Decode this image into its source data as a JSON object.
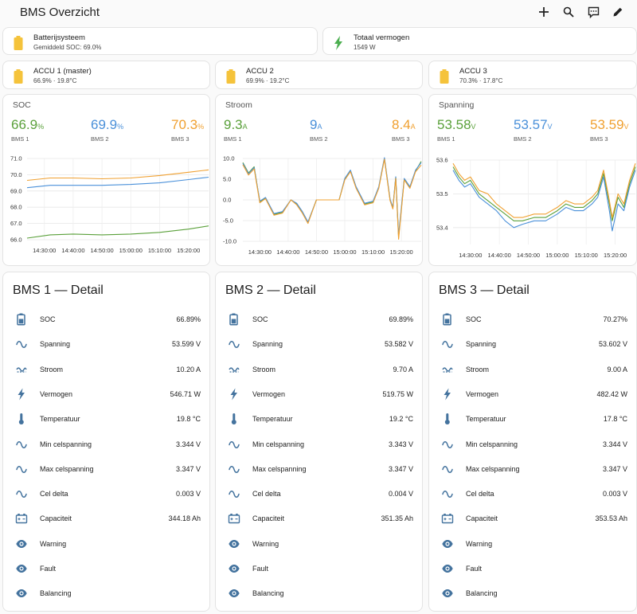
{
  "app_title": "BMS Overzicht",
  "colors": {
    "green": "#5aa03a",
    "blue": "#4a90d9",
    "orange": "#f0a030",
    "battery": "#f5c33b",
    "icon": "#44739e",
    "bolt": "#4caf50"
  },
  "toolbar": {
    "icons": [
      "plus-icon",
      "search-icon",
      "assist-icon",
      "pencil-icon"
    ]
  },
  "summary": [
    {
      "name": "Batterijsysteem",
      "state": "Gemiddeld SOC: 69.0%",
      "icon": "battery-icon"
    },
    {
      "name": "Totaal vermogen",
      "state": "1549 W",
      "icon": "flash-icon"
    }
  ],
  "accus": [
    {
      "name": "ACCU 1 (master)",
      "state": "66.9% · 19.8°C"
    },
    {
      "name": "ACCU 2",
      "state": "69.9% · 19.2°C"
    },
    {
      "name": "ACCU 3",
      "state": "70.3% · 17.8°C"
    }
  ],
  "graphs": [
    {
      "title": "SOC",
      "items": [
        {
          "value": "66.9",
          "unit": "%",
          "label": "BMS 1"
        },
        {
          "value": "69.9",
          "unit": "%",
          "label": "BMS 2"
        },
        {
          "value": "70.3",
          "unit": "%",
          "label": "BMS 3"
        }
      ]
    },
    {
      "title": "Stroom",
      "items": [
        {
          "value": "9.3",
          "unit": "A",
          "label": "BMS 1"
        },
        {
          "value": "9",
          "unit": "A",
          "label": "BMS 2"
        },
        {
          "value": "8.4",
          "unit": "A",
          "label": "BMS 3"
        }
      ]
    },
    {
      "title": "Spanning",
      "items": [
        {
          "value": "53.58",
          "unit": "V",
          "label": "BMS 1"
        },
        {
          "value": "53.57",
          "unit": "V",
          "label": "BMS 2"
        },
        {
          "value": "53.59",
          "unit": "V",
          "label": "BMS 3"
        }
      ]
    }
  ],
  "chart_data": [
    {
      "type": "line",
      "title": "SOC",
      "xlabel": "",
      "ylabel": "",
      "x_ticks": [
        "14:30:00",
        "14:40:00",
        "14:50:00",
        "15:00:00",
        "15:10:00",
        "15:20:00"
      ],
      "x_range": [
        "14:24",
        "15:27"
      ],
      "y_ticks": [
        "66.0",
        "67.0",
        "68.0",
        "69.0",
        "70.0",
        "71.0"
      ],
      "ylim": [
        66,
        71
      ],
      "grid": true,
      "series": [
        {
          "name": "BMS 1",
          "color": "#5aa03a",
          "x": [
            "14:24",
            "14:32",
            "14:40",
            "14:50",
            "15:00",
            "15:10",
            "15:20",
            "15:27"
          ],
          "y": [
            66.1,
            66.3,
            66.35,
            66.3,
            66.35,
            66.45,
            66.65,
            66.85
          ]
        },
        {
          "name": "BMS 2",
          "color": "#4a90d9",
          "x": [
            "14:24",
            "14:32",
            "14:40",
            "14:50",
            "15:00",
            "15:10",
            "15:20",
            "15:27"
          ],
          "y": [
            69.2,
            69.35,
            69.35,
            69.35,
            69.4,
            69.5,
            69.7,
            69.85
          ]
        },
        {
          "name": "BMS 3",
          "color": "#f0a030",
          "x": [
            "14:24",
            "14:32",
            "14:40",
            "14:50",
            "15:00",
            "15:10",
            "15:20",
            "15:27"
          ],
          "y": [
            69.65,
            69.8,
            69.8,
            69.75,
            69.8,
            69.95,
            70.15,
            70.3
          ]
        }
      ]
    },
    {
      "type": "line",
      "title": "Stroom",
      "xlabel": "",
      "ylabel": "",
      "x_ticks": [
        "14:30:00",
        "14:40:00",
        "14:50:00",
        "15:00:00",
        "15:10:00",
        "15:20:00"
      ],
      "x_range": [
        "14:24",
        "15:27"
      ],
      "y_ticks": [
        "-10.0",
        "-5.0",
        "0.0",
        "5.0",
        "10.0"
      ],
      "ylim": [
        -10,
        10
      ],
      "grid": true,
      "series": [
        {
          "name": "BMS 1",
          "color": "#5aa03a",
          "x": [
            "14:24",
            "14:26",
            "14:28",
            "14:30",
            "14:32",
            "14:35",
            "14:38",
            "14:41",
            "14:43",
            "14:45",
            "14:47",
            "14:50",
            "14:53",
            "14:56",
            "14:58",
            "15:00",
            "15:02",
            "15:04",
            "15:07",
            "15:10",
            "15:12",
            "15:14",
            "15:16",
            "15:17",
            "15:18",
            "15:19",
            "15:21",
            "15:23",
            "15:25",
            "15:27"
          ],
          "y": [
            9.0,
            6.5,
            8.0,
            -0.5,
            0.5,
            -3.5,
            -3.0,
            0.0,
            -1.0,
            -3.0,
            -5.5,
            0.0,
            0.0,
            0.0,
            0.0,
            5.0,
            7.0,
            3.0,
            -1.0,
            -0.5,
            3.0,
            10.0,
            0.0,
            -2.0,
            5.5,
            -9.0,
            5.0,
            3.0,
            7.0,
            9.3
          ]
        },
        {
          "name": "BMS 2",
          "color": "#4a90d9",
          "x": [
            "14:24",
            "14:26",
            "14:28",
            "14:30",
            "14:32",
            "14:35",
            "14:38",
            "14:41",
            "14:43",
            "14:45",
            "14:47",
            "14:50",
            "14:53",
            "14:56",
            "14:58",
            "15:00",
            "15:02",
            "15:04",
            "15:07",
            "15:10",
            "15:12",
            "15:14",
            "15:16",
            "15:17",
            "15:18",
            "15:19",
            "15:21",
            "15:23",
            "15:25",
            "15:27"
          ],
          "y": [
            8.8,
            6.3,
            7.8,
            -0.3,
            0.6,
            -3.3,
            -2.8,
            0.0,
            -0.8,
            -2.8,
            -5.3,
            0.0,
            0.0,
            0.0,
            0.0,
            5.2,
            7.2,
            3.2,
            -0.8,
            -0.3,
            3.2,
            10.2,
            0.2,
            -1.8,
            5.6,
            -8.5,
            5.2,
            3.2,
            7.2,
            9.0
          ]
        },
        {
          "name": "BMS 3",
          "color": "#f0a030",
          "x": [
            "14:24",
            "14:26",
            "14:28",
            "14:30",
            "14:32",
            "14:35",
            "14:38",
            "14:41",
            "14:43",
            "14:45",
            "14:47",
            "14:50",
            "14:53",
            "14:56",
            "14:58",
            "15:00",
            "15:02",
            "15:04",
            "15:07",
            "15:10",
            "15:12",
            "15:14",
            "15:16",
            "15:17",
            "15:18",
            "15:19",
            "15:21",
            "15:23",
            "15:25",
            "15:27"
          ],
          "y": [
            8.5,
            6.0,
            7.5,
            -0.7,
            0.3,
            -3.7,
            -3.2,
            0.0,
            -1.2,
            -3.2,
            -5.7,
            0.0,
            0.0,
            0.0,
            0.0,
            4.8,
            6.8,
            2.8,
            -1.2,
            -0.7,
            2.8,
            9.8,
            -0.2,
            -2.2,
            5.2,
            -9.5,
            4.8,
            2.8,
            6.8,
            8.4
          ]
        }
      ]
    },
    {
      "type": "line",
      "title": "Spanning",
      "xlabel": "",
      "ylabel": "",
      "x_ticks": [
        "14:30:00",
        "14:40:00",
        "14:50:00",
        "15:00:00",
        "15:10:00",
        "15:20:00"
      ],
      "x_range": [
        "14:24",
        "15:27"
      ],
      "y_ticks": [
        "53.4",
        "53.5",
        "53.6"
      ],
      "ylim": [
        53.35,
        53.6
      ],
      "grid": true,
      "series": [
        {
          "name": "BMS 1",
          "color": "#5aa03a",
          "x": [
            "14:24",
            "14:26",
            "14:28",
            "14:30",
            "14:33",
            "14:36",
            "14:39",
            "14:42",
            "14:45",
            "14:48",
            "14:52",
            "14:56",
            "15:00",
            "15:03",
            "15:06",
            "15:09",
            "15:12",
            "15:14",
            "15:16",
            "15:18",
            "15:19",
            "15:21",
            "15:23",
            "15:25",
            "15:27"
          ],
          "y": [
            53.58,
            53.55,
            53.53,
            53.54,
            53.5,
            53.48,
            53.46,
            53.44,
            53.42,
            53.42,
            53.43,
            53.43,
            53.45,
            53.47,
            53.46,
            53.46,
            53.48,
            53.5,
            53.56,
            53.47,
            53.42,
            53.49,
            53.46,
            53.53,
            53.58
          ]
        },
        {
          "name": "BMS 2",
          "color": "#4a90d9",
          "x": [
            "14:24",
            "14:26",
            "14:28",
            "14:30",
            "14:33",
            "14:36",
            "14:39",
            "14:42",
            "14:45",
            "14:48",
            "14:52",
            "14:56",
            "15:00",
            "15:03",
            "15:06",
            "15:09",
            "15:12",
            "15:14",
            "15:16",
            "15:18",
            "15:19",
            "15:21",
            "15:23",
            "15:25",
            "15:27"
          ],
          "y": [
            53.57,
            53.54,
            53.52,
            53.53,
            53.49,
            53.47,
            53.45,
            53.42,
            53.4,
            53.41,
            53.42,
            53.42,
            53.44,
            53.46,
            53.45,
            53.45,
            53.47,
            53.49,
            53.55,
            53.45,
            53.39,
            53.47,
            53.45,
            53.52,
            53.57
          ]
        },
        {
          "name": "BMS 3",
          "color": "#f0a030",
          "x": [
            "14:24",
            "14:26",
            "14:28",
            "14:30",
            "14:33",
            "14:36",
            "14:39",
            "14:42",
            "14:45",
            "14:48",
            "14:52",
            "14:56",
            "15:00",
            "15:03",
            "15:06",
            "15:09",
            "15:12",
            "15:14",
            "15:16",
            "15:18",
            "15:19",
            "15:21",
            "15:23",
            "15:25",
            "15:27"
          ],
          "y": [
            53.59,
            53.56,
            53.54,
            53.55,
            53.51,
            53.5,
            53.47,
            53.45,
            53.43,
            53.43,
            53.44,
            53.44,
            53.46,
            53.48,
            53.47,
            53.47,
            53.49,
            53.51,
            53.57,
            53.48,
            53.43,
            53.5,
            53.47,
            53.54,
            53.59
          ]
        }
      ]
    }
  ],
  "details": [
    {
      "title": "BMS 1 — Detail",
      "rows": [
        {
          "label": "SOC",
          "value": "66.89%",
          "icon": "battery-outline-icon"
        },
        {
          "label": "Spanning",
          "value": "53.599 V",
          "icon": "sine-wave-icon"
        },
        {
          "label": "Stroom",
          "value": "10.20 A",
          "icon": "current-icon"
        },
        {
          "label": "Vermogen",
          "value": "546.71 W",
          "icon": "flash-icon"
        },
        {
          "label": "Temperatuur",
          "value": "19.8 °C",
          "icon": "thermometer-icon"
        },
        {
          "label": "Min celspanning",
          "value": "3.344 V",
          "icon": "sine-wave-icon"
        },
        {
          "label": "Max celspanning",
          "value": "3.347 V",
          "icon": "sine-wave-icon"
        },
        {
          "label": "Cel delta",
          "value": "0.003 V",
          "icon": "sine-wave-icon"
        },
        {
          "label": "Capaciteit",
          "value": "344.18 Ah",
          "icon": "car-battery-icon"
        },
        {
          "label": "Warning",
          "value": "",
          "icon": "eye-icon"
        },
        {
          "label": "Fault",
          "value": "",
          "icon": "eye-icon"
        },
        {
          "label": "Balancing",
          "value": "",
          "icon": "eye-icon"
        }
      ]
    },
    {
      "title": "BMS 2 — Detail",
      "rows": [
        {
          "label": "SOC",
          "value": "69.89%",
          "icon": "battery-outline-icon"
        },
        {
          "label": "Spanning",
          "value": "53.582 V",
          "icon": "sine-wave-icon"
        },
        {
          "label": "Stroom",
          "value": "9.70 A",
          "icon": "current-icon"
        },
        {
          "label": "Vermogen",
          "value": "519.75 W",
          "icon": "flash-icon"
        },
        {
          "label": "Temperatuur",
          "value": "19.2 °C",
          "icon": "thermometer-icon"
        },
        {
          "label": "Min celspanning",
          "value": "3.343 V",
          "icon": "sine-wave-icon"
        },
        {
          "label": "Max celspanning",
          "value": "3.347 V",
          "icon": "sine-wave-icon"
        },
        {
          "label": "Cel delta",
          "value": "0.004 V",
          "icon": "sine-wave-icon"
        },
        {
          "label": "Capaciteit",
          "value": "351.35 Ah",
          "icon": "car-battery-icon"
        },
        {
          "label": "Warning",
          "value": "",
          "icon": "eye-icon"
        },
        {
          "label": "Fault",
          "value": "",
          "icon": "eye-icon"
        },
        {
          "label": "Balancing",
          "value": "",
          "icon": "eye-icon"
        }
      ]
    },
    {
      "title": "BMS 3 — Detail",
      "rows": [
        {
          "label": "SOC",
          "value": "70.27%",
          "icon": "battery-outline-icon"
        },
        {
          "label": "Spanning",
          "value": "53.602 V",
          "icon": "sine-wave-icon"
        },
        {
          "label": "Stroom",
          "value": "9.00 A",
          "icon": "current-icon"
        },
        {
          "label": "Vermogen",
          "value": "482.42 W",
          "icon": "flash-icon"
        },
        {
          "label": "Temperatuur",
          "value": "17.8 °C",
          "icon": "thermometer-icon"
        },
        {
          "label": "Min celspanning",
          "value": "3.344 V",
          "icon": "sine-wave-icon"
        },
        {
          "label": "Max celspanning",
          "value": "3.347 V",
          "icon": "sine-wave-icon"
        },
        {
          "label": "Cel delta",
          "value": "0.003 V",
          "icon": "sine-wave-icon"
        },
        {
          "label": "Capaciteit",
          "value": "353.53 Ah",
          "icon": "car-battery-icon"
        },
        {
          "label": "Warning",
          "value": "",
          "icon": "eye-icon"
        },
        {
          "label": "Fault",
          "value": "",
          "icon": "eye-icon"
        },
        {
          "label": "Balancing",
          "value": "",
          "icon": "eye-icon"
        }
      ]
    }
  ]
}
